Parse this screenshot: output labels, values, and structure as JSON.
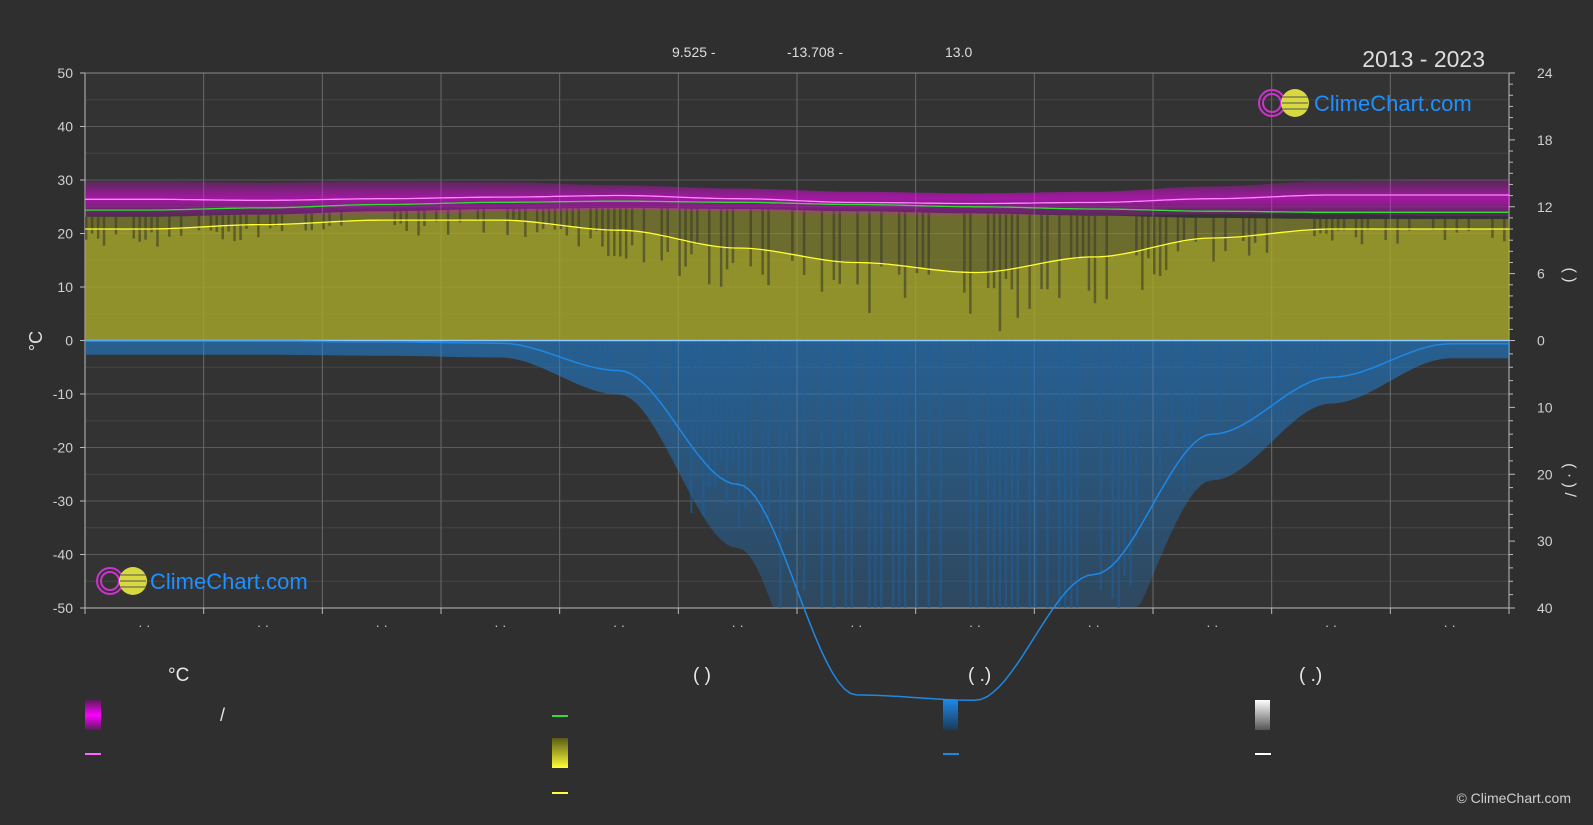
{
  "header": {
    "coord_1": "9.525 -",
    "coord_2": "-13.708 -",
    "coord_3": "13.0",
    "period": "2013 - 2023"
  },
  "brand": {
    "logo_text": "ClimeChart.com",
    "copyright": "© ClimeChart.com"
  },
  "legend": {
    "temp_head": "°C",
    "sun_head": "(          )",
    "rain_head": "(   .)",
    "snow_head": "(   .)",
    "slash": "/"
  },
  "colors": {
    "background": "#2f2f2f",
    "temperature_band": "#ff00ff",
    "temperature_mean": "#ff88ff",
    "daylight": "#33dd33",
    "sunshine": "#ffff33",
    "sunshine_fill": "#9a9a2a",
    "precipitation": "#1e88e5",
    "snow": "#ffffff",
    "axis_text": "#cfcfcf"
  },
  "chart_data": {
    "type": "area",
    "left_axis": {
      "label": "°C",
      "ylim": [
        -50,
        50
      ],
      "ticks": [
        50,
        40,
        30,
        20,
        10,
        0,
        -10,
        -20,
        -30,
        -40,
        -50
      ]
    },
    "right_axis_top": {
      "ylim": [
        0,
        24
      ],
      "ticks": [
        24,
        18,
        12,
        6,
        0
      ],
      "label": "(   )"
    },
    "right_axis_bottom": {
      "ylim": [
        0,
        40
      ],
      "ticks": [
        0,
        10,
        20,
        30,
        40
      ],
      "label": "(  ·  )   /"
    },
    "x_tick_labels": [
      "· ·",
      "· ·",
      "· ·",
      "· ·",
      "· ·",
      "· ·",
      "· ·",
      "· ·",
      "· ·",
      "· ·",
      "· ·",
      "· ·"
    ],
    "grid": true,
    "series": [
      {
        "key": "temp_mean",
        "axis": "temperature",
        "values": [
          26.4,
          26.2,
          26.5,
          26.8,
          27.1,
          26.5,
          25.8,
          25.6,
          25.8,
          26.5,
          27.2,
          27.2
        ]
      },
      {
        "key": "temp_max",
        "axis": "temperature",
        "values": [
          29.8,
          29.5,
          29.8,
          29.6,
          29.0,
          28.4,
          27.8,
          27.5,
          27.8,
          28.8,
          29.8,
          30.0
        ]
      },
      {
        "key": "temp_min",
        "axis": "temperature",
        "values": [
          23.2,
          23.3,
          23.6,
          24.0,
          24.4,
          24.2,
          23.6,
          23.4,
          23.3,
          23.6,
          23.6,
          23.3
        ]
      },
      {
        "key": "daylight",
        "axis": "hours",
        "values": [
          11.7,
          11.9,
          12.2,
          12.4,
          12.5,
          12.4,
          12.2,
          12.0,
          11.8,
          11.6,
          11.5,
          11.5
        ]
      },
      {
        "key": "sunshine",
        "axis": "hours",
        "values": [
          10.0,
          10.4,
          10.8,
          10.8,
          9.9,
          8.3,
          7.0,
          6.1,
          7.5,
          9.2,
          10.0,
          10.0
        ]
      },
      {
        "key": "precipitation",
        "axis": "mm",
        "values": [
          0.1,
          0.1,
          0.2,
          0.4,
          4.5,
          21.5,
          53.0,
          53.8,
          35.0,
          14.0,
          5.5,
          0.5
        ]
      }
    ]
  }
}
